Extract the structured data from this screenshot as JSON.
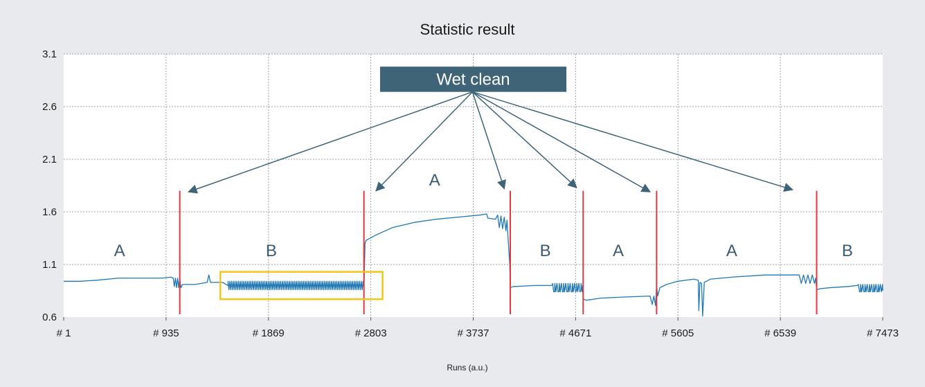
{
  "chart_data": {
    "type": "line",
    "title": "Statistic result",
    "xlabel": "Runs (a.u.)",
    "ylabel": "",
    "xlim": [
      1,
      7473
    ],
    "ylim": [
      0.6,
      3.1
    ],
    "y_ticks": [
      "0.6",
      "1.1",
      "1.6",
      "2.1",
      "2.6",
      "3.1"
    ],
    "x_ticks": [
      "# 1",
      "# 935",
      "# 1869",
      "# 2803",
      "# 3737",
      "# 4671",
      "# 5605",
      "# 6539",
      "# 7473"
    ],
    "grid": true,
    "series_color": "#1f77b4",
    "marker_color": "#e0393e",
    "highlight_color": "#f5c518",
    "callout_color": "#3f6478",
    "series": [
      {
        "points": [
          [
            1,
            0.94
          ],
          [
            150,
            0.94
          ],
          [
            300,
            0.95
          ],
          [
            500,
            0.97
          ],
          [
            700,
            0.97
          ],
          [
            900,
            0.97
          ],
          [
            980,
            0.98
          ],
          [
            1000,
            0.97
          ],
          [
            1010,
            0.89
          ],
          [
            1020,
            0.97
          ],
          [
            1030,
            0.88
          ],
          [
            1040,
            0.97
          ],
          [
            1050,
            0.88
          ],
          [
            1060,
            0.97
          ],
          [
            1070,
            0.88
          ],
          [
            1085,
            0.91
          ],
          [
            1200,
            0.91
          ],
          [
            1310,
            0.93
          ],
          [
            1325,
            1.0
          ],
          [
            1340,
            0.93
          ],
          [
            1450,
            0.93
          ],
          [
            1500,
            0.9
          ],
          [
            2735,
            0.9
          ],
          [
            2740,
            0.88
          ],
          [
            2750,
            1.3
          ],
          [
            2760,
            1.33
          ],
          [
            2850,
            1.38
          ],
          [
            3000,
            1.45
          ],
          [
            3200,
            1.5
          ],
          [
            3400,
            1.53
          ],
          [
            3600,
            1.55
          ],
          [
            3800,
            1.57
          ],
          [
            3860,
            1.58
          ],
          [
            3870,
            1.54
          ],
          [
            3940,
            1.53
          ],
          [
            3960,
            1.57
          ],
          [
            3975,
            1.45
          ],
          [
            3990,
            1.56
          ],
          [
            4005,
            1.44
          ],
          [
            4020,
            1.55
          ],
          [
            4035,
            1.42
          ],
          [
            4045,
            1.52
          ],
          [
            4055,
            1.35
          ],
          [
            4070,
            1.1
          ],
          [
            4075,
            0.88
          ],
          [
            4100,
            0.89
          ],
          [
            4300,
            0.9
          ],
          [
            4450,
            0.9
          ],
          [
            4461,
            0.91
          ],
          [
            4480,
            0.84
          ],
          [
            4500,
            0.92
          ],
          [
            4520,
            0.84
          ],
          [
            4540,
            0.92
          ],
          [
            4560,
            0.84
          ],
          [
            4580,
            0.92
          ],
          [
            4600,
            0.84
          ],
          [
            4620,
            0.92
          ],
          [
            4640,
            0.84
          ],
          [
            4660,
            0.92
          ],
          [
            4680,
            0.85
          ],
          [
            4700,
            0.92
          ],
          [
            4720,
            0.85
          ],
          [
            4735,
            0.9
          ],
          [
            4740,
            0.77
          ],
          [
            4770,
            0.76
          ],
          [
            4900,
            0.78
          ],
          [
            5100,
            0.79
          ],
          [
            5350,
            0.8
          ],
          [
            5370,
            0.72
          ],
          [
            5385,
            0.8
          ],
          [
            5400,
            0.71
          ],
          [
            5410,
            0.9
          ],
          [
            5420,
            0.8
          ],
          [
            5440,
            0.88
          ],
          [
            5500,
            0.91
          ],
          [
            5600,
            0.94
          ],
          [
            5750,
            0.96
          ],
          [
            5790,
            0.95
          ],
          [
            5795,
            0.66
          ],
          [
            5805,
            0.93
          ],
          [
            5820,
            0.92
          ],
          [
            5830,
            0.61
          ],
          [
            5845,
            0.93
          ],
          [
            5900,
            0.96
          ],
          [
            6100,
            0.98
          ],
          [
            6400,
            1.0
          ],
          [
            6600,
            1.0
          ],
          [
            6680,
            1.0
          ],
          [
            6700,
            1.0
          ],
          [
            6711,
            1.0
          ],
          [
            6730,
            0.92
          ],
          [
            6750,
            1.0
          ],
          [
            6770,
            0.92
          ],
          [
            6790,
            1.0
          ],
          [
            6810,
            0.92
          ],
          [
            6830,
            1.0
          ],
          [
            6850,
            0.92
          ],
          [
            6860,
            0.97
          ],
          [
            6870,
            0.86
          ],
          [
            6900,
            0.87
          ],
          [
            7000,
            0.88
          ],
          [
            7150,
            0.89
          ],
          [
            7240,
            0.9
          ],
          [
            7251,
            0.91
          ],
          [
            7270,
            0.84
          ],
          [
            7290,
            0.91
          ],
          [
            7310,
            0.84
          ],
          [
            7330,
            0.91
          ],
          [
            7350,
            0.84
          ],
          [
            7370,
            0.91
          ],
          [
            7390,
            0.84
          ],
          [
            7410,
            0.91
          ],
          [
            7430,
            0.84
          ],
          [
            7450,
            0.91
          ],
          [
            7473,
            0.85
          ]
        ],
        "oscillations": [
          {
            "x_start": 1500,
            "x_end": 2735,
            "low": 0.86,
            "high": 0.94,
            "step": 16
          },
          {
            "x_start": 4461,
            "x_end": 4735,
            "low": 0.84,
            "high": 0.92,
            "step": 20
          },
          {
            "x_start": 7251,
            "x_end": 7473,
            "low": 0.84,
            "high": 0.91,
            "step": 20
          }
        ]
      }
    ],
    "wet_clean_runs": [
      1060,
      2740,
      4075,
      4740,
      5410,
      6870
    ],
    "marker_y_top": 1.8,
    "callout": {
      "label": "Wet clean",
      "x_center": 3737,
      "y_center": 2.86,
      "x_half_width": 850,
      "y_half_height": 0.12
    },
    "arrow_origin": [
      3730,
      2.74
    ],
    "arrow_targets": [
      [
        1140,
        1.79
      ],
      [
        2850,
        1.8
      ],
      [
        4020,
        1.82
      ],
      [
        4680,
        1.83
      ],
      [
        5350,
        1.79
      ],
      [
        6650,
        1.81
      ]
    ],
    "regions": [
      {
        "label": "A",
        "x": 510,
        "y": 1.1
      },
      {
        "label": "B",
        "x": 1895,
        "y": 1.1
      },
      {
        "label": "A",
        "x": 3385,
        "y": 1.77
      },
      {
        "label": "B",
        "x": 4395,
        "y": 1.1
      },
      {
        "label": "A",
        "x": 5060,
        "y": 1.1
      },
      {
        "label": "A",
        "x": 6095,
        "y": 1.1
      },
      {
        "label": "B",
        "x": 7150,
        "y": 1.1
      }
    ],
    "highlight_box": {
      "x_start": 1430,
      "x_end": 2910,
      "y_low": 0.77,
      "y_high": 1.03
    }
  }
}
